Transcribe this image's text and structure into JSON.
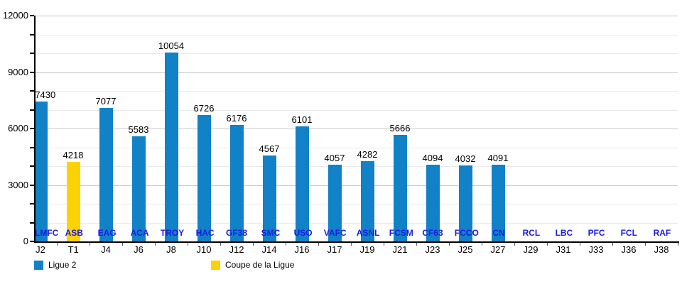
{
  "chart_data": {
    "type": "bar",
    "title": "",
    "xlabel": "",
    "ylabel": "",
    "ylim": [
      0,
      12000
    ],
    "y_major_step": 3000,
    "y_minor_step": 1000,
    "y_tick_labels": [
      "0",
      "3000",
      "6000",
      "9000",
      "12000"
    ],
    "grid": true,
    "legend_position": "bottom",
    "series": [
      {
        "name": "Ligue 2",
        "color": "#1181c8"
      },
      {
        "name": "Coupe de la Ligue",
        "color": "#fcd202"
      }
    ],
    "points": [
      {
        "x": "J2",
        "team": "LMFC",
        "value": 7430,
        "series": "Ligue 2"
      },
      {
        "x": "T1",
        "team": "ASB",
        "value": 4218,
        "series": "Coupe de la Ligue"
      },
      {
        "x": "J4",
        "team": "EAG",
        "value": 7077,
        "series": "Ligue 2"
      },
      {
        "x": "J6",
        "team": "ACA",
        "value": 5583,
        "series": "Ligue 2"
      },
      {
        "x": "J8",
        "team": "TROY",
        "value": 10054,
        "series": "Ligue 2"
      },
      {
        "x": "J10",
        "team": "HAC",
        "value": 6726,
        "series": "Ligue 2"
      },
      {
        "x": "J12",
        "team": "GF38",
        "value": 6176,
        "series": "Ligue 2"
      },
      {
        "x": "J14",
        "team": "SMC",
        "value": 4567,
        "series": "Ligue 2"
      },
      {
        "x": "J16",
        "team": "USO",
        "value": 6101,
        "series": "Ligue 2"
      },
      {
        "x": "J17",
        "team": "VAFC",
        "value": 4057,
        "series": "Ligue 2"
      },
      {
        "x": "J19",
        "team": "ASNL",
        "value": 4282,
        "series": "Ligue 2"
      },
      {
        "x": "J21",
        "team": "FCSM",
        "value": 5666,
        "series": "Ligue 2"
      },
      {
        "x": "J23",
        "team": "CF63",
        "value": 4094,
        "series": "Ligue 2"
      },
      {
        "x": "J25",
        "team": "FCCO",
        "value": 4032,
        "series": "Ligue 2"
      },
      {
        "x": "J27",
        "team": "CN",
        "value": 4091,
        "series": "Ligue 2"
      },
      {
        "x": "J29",
        "team": "RCL",
        "value": null,
        "series": "Ligue 2"
      },
      {
        "x": "J31",
        "team": "LBC",
        "value": null,
        "series": "Ligue 2"
      },
      {
        "x": "J33",
        "team": "PFC",
        "value": null,
        "series": "Ligue 2"
      },
      {
        "x": "J36",
        "team": "FCL",
        "value": null,
        "series": "Ligue 2"
      },
      {
        "x": "J38",
        "team": "RAF",
        "value": null,
        "series": "Ligue 2"
      }
    ]
  },
  "legend": {
    "items": [
      {
        "label": "Ligue 2",
        "color": "#1181c8"
      },
      {
        "label": "Coupe de la Ligue",
        "color": "#fcd202"
      }
    ]
  },
  "colors": {
    "bar_blue": "#1181c8",
    "bar_yellow": "#fcd202",
    "team_label": "#1b1be0",
    "grid_major": "#c9c9c9",
    "grid_minor": "#e9e9e9",
    "axis": "#000000"
  }
}
